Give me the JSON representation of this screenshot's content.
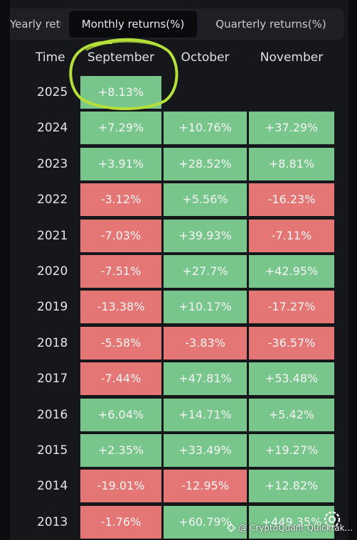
{
  "tabs": [
    {
      "label": "Yearly returns(%)"
    },
    {
      "label": "Monthly returns(%)",
      "active": true
    },
    {
      "label": "Quarterly returns(%)"
    }
  ],
  "table": {
    "time_header": "Time",
    "columns": [
      "September",
      "October",
      "November"
    ],
    "rows": [
      {
        "year": "2025",
        "cells": [
          "+8.13%",
          "",
          ""
        ]
      },
      {
        "year": "2024",
        "cells": [
          "+7.29%",
          "+10.76%",
          "+37.29%"
        ]
      },
      {
        "year": "2023",
        "cells": [
          "+3.91%",
          "+28.52%",
          "+8.81%"
        ]
      },
      {
        "year": "2022",
        "cells": [
          "-3.12%",
          "+5.56%",
          "-16.23%"
        ]
      },
      {
        "year": "2021",
        "cells": [
          "-7.03%",
          "+39.93%",
          "-7.11%"
        ]
      },
      {
        "year": "2020",
        "cells": [
          "-7.51%",
          "+27.7%",
          "+42.95%"
        ]
      },
      {
        "year": "2019",
        "cells": [
          "-13.38%",
          "+10.17%",
          "-17.27%"
        ]
      },
      {
        "year": "2018",
        "cells": [
          "-5.58%",
          "-3.83%",
          "-36.57%"
        ]
      },
      {
        "year": "2017",
        "cells": [
          "-7.44%",
          "+47.81%",
          "+53.48%"
        ]
      },
      {
        "year": "2016",
        "cells": [
          "+6.04%",
          "+14.71%",
          "+5.42%"
        ]
      },
      {
        "year": "2015",
        "cells": [
          "+2.35%",
          "+33.49%",
          "+19.27%"
        ]
      },
      {
        "year": "2014",
        "cells": [
          "-19.01%",
          "-12.95%",
          "+12.82%"
        ]
      },
      {
        "year": "2013",
        "cells": [
          "-1.76%",
          "+60.79%",
          "+449.35%"
        ]
      }
    ]
  },
  "colors": {
    "positive": "#79c68c",
    "negative": "#e47775",
    "highlight_ring": "#b5e03a"
  },
  "watermark": {
    "text": "@ CryptoQuant Quicktak...",
    "icon": "cryptoquant-logo-icon"
  },
  "settings_icon": "settings-icon"
}
